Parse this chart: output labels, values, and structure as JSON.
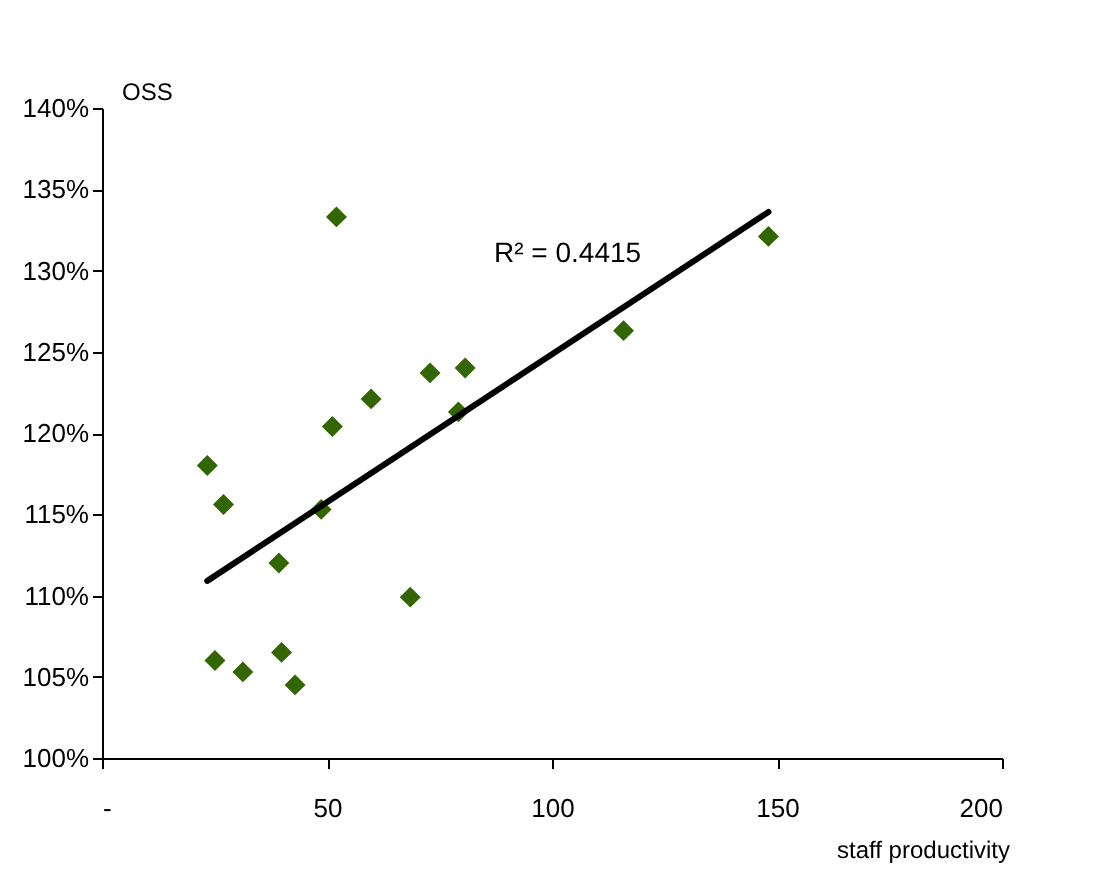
{
  "chart_data": {
    "type": "scatter",
    "ylabel": "OSS",
    "xlabel": "staff productivity",
    "annotations": [
      "R² = 0.4415"
    ],
    "xlim": [
      0,
      200
    ],
    "xticks": [
      {
        "value": 0,
        "label": "-"
      },
      50,
      100,
      150,
      200
    ],
    "ylim": [
      100,
      140
    ],
    "yticks": [
      {
        "value": 100,
        "label": "100%"
      },
      {
        "value": 105,
        "label": "105%"
      },
      {
        "value": 110,
        "label": "110%"
      },
      {
        "value": 115,
        "label": "115%"
      },
      {
        "value": 120,
        "label": "120%"
      },
      {
        "value": 125,
        "label": "125%"
      },
      {
        "value": 130,
        "label": "130%"
      },
      {
        "value": 135,
        "label": "135%"
      },
      {
        "value": 140,
        "label": "140%"
      }
    ],
    "grid": false,
    "series": [
      {
        "color": "#336600",
        "marker": "diamond",
        "x": [
          23.4,
          27.0,
          52.1,
          51.2,
          48.7,
          39.3,
          59.8,
          72.9,
          80.7,
          79.2,
          68.5,
          25.1,
          31.3,
          39.9,
          42.9,
          115.9,
          148.1
        ],
        "values": [
          118.0,
          115.6,
          133.3,
          120.4,
          115.3,
          112.0,
          122.1,
          123.7,
          124.0,
          121.3,
          109.9,
          106.0,
          105.3,
          106.5,
          104.5,
          126.3,
          132.1
        ]
      },
      {
        "type": "line",
        "color": "#000000",
        "line_style": "solid",
        "x": [
          23.4,
          148.1
        ],
        "values": [
          110.9,
          133.6
        ]
      }
    ]
  }
}
